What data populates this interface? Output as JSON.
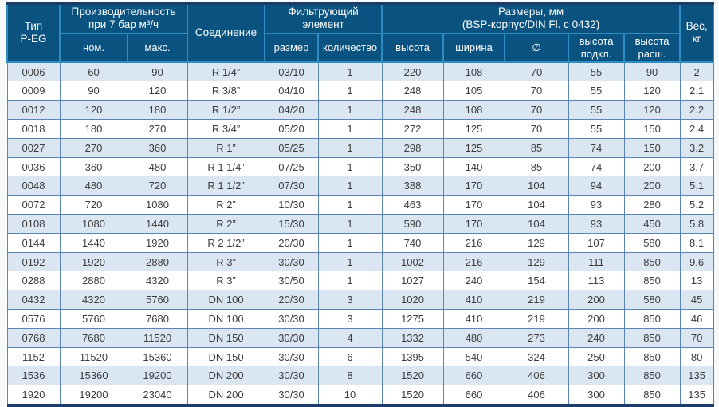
{
  "table": {
    "header": {
      "type": "Тип\nP-EG",
      "performance_group": "Производительность\nпри 7 бар м³/ч",
      "connection": "Соединение",
      "filter_group": "Фильтрующий\nэлемент",
      "dimensions_group": "Размеры, мм\n(BSP-корпус/DIN Fl. с 0432)",
      "weight": "Вес, кг",
      "subs": {
        "nominal": "ном.",
        "max": "макс.",
        "size": "размер",
        "quantity": "количество",
        "height": "высота",
        "width": "ширина",
        "diameter": "∅",
        "height_conn": "высота\nподкл.",
        "height_exp": "высота\nрасш."
      }
    },
    "column_keys": [
      "type",
      "nominal",
      "max",
      "connection",
      "element-size",
      "element-quantity",
      "height",
      "width",
      "diameter",
      "height-conn",
      "height-exp",
      "weight"
    ],
    "colors": {
      "header_bg": "#0a5280",
      "header_divider": "#2d8dc3",
      "grid_line": "#5b84b4",
      "striped_row_bg": "#dbe6f3",
      "outer_border": "#1e3d66",
      "cell_text": "#3c3c3c",
      "header_text": "#ffffff"
    },
    "rows": [
      [
        "0006",
        "60",
        "90",
        "R 1/4”",
        "03/10",
        "1",
        "220",
        "108",
        "70",
        "55",
        "90",
        "2"
      ],
      [
        "0009",
        "90",
        "120",
        "R 3/8”",
        "04/10",
        "1",
        "248",
        "105",
        "70",
        "55",
        "120",
        "2.1"
      ],
      [
        "0012",
        "120",
        "180",
        "R 1/2”",
        "04/20",
        "1",
        "248",
        "108",
        "70",
        "55",
        "120",
        "2.2"
      ],
      [
        "0018",
        "180",
        "270",
        "R 3/4”",
        "05/20",
        "1",
        "272",
        "125",
        "70",
        "55",
        "150",
        "2.4"
      ],
      [
        "0027",
        "270",
        "360",
        "R 1”",
        "05/25",
        "1",
        "298",
        "125",
        "85",
        "74",
        "150",
        "3.2"
      ],
      [
        "0036",
        "360",
        "480",
        "R 1 1/4”",
        "07/25",
        "1",
        "350",
        "140",
        "85",
        "74",
        "200",
        "3.7"
      ],
      [
        "0048",
        "480",
        "720",
        "R 1 1/2”",
        "07/30",
        "1",
        "388",
        "170",
        "104",
        "94",
        "200",
        "5.1"
      ],
      [
        "0072",
        "720",
        "1080",
        "R 2”",
        "10/30",
        "1",
        "463",
        "170",
        "104",
        "93",
        "280",
        "5.2"
      ],
      [
        "0108",
        "1080",
        "1440",
        "R 2”",
        "15/30",
        "1",
        "590",
        "170",
        "104",
        "93",
        "450",
        "5.8"
      ],
      [
        "0144",
        "1440",
        "1920",
        "R 2 1/2”",
        "20/30",
        "1",
        "740",
        "216",
        "129",
        "107",
        "580",
        "8.1"
      ],
      [
        "0192",
        "1920",
        "2880",
        "R 3”",
        "30/30",
        "1",
        "1002",
        "216",
        "129",
        "111",
        "850",
        "9.6"
      ],
      [
        "0288",
        "2880",
        "4320",
        "R 3”",
        "30/50",
        "1",
        "1027",
        "240",
        "154",
        "113",
        "850",
        "13"
      ],
      [
        "0432",
        "4320",
        "5760",
        "DN 100",
        "20/30",
        "3",
        "1020",
        "410",
        "219",
        "200",
        "580",
        "45"
      ],
      [
        "0576",
        "5760",
        "7680",
        "DN 100",
        "30/30",
        "3",
        "1275",
        "410",
        "219",
        "200",
        "850",
        "46"
      ],
      [
        "0768",
        "7680",
        "11520",
        "DN 150",
        "30/30",
        "4",
        "1332",
        "480",
        "273",
        "240",
        "850",
        "70"
      ],
      [
        "1152",
        "11520",
        "15360",
        "DN 150",
        "30/30",
        "6",
        "1395",
        "540",
        "324",
        "250",
        "850",
        "80"
      ],
      [
        "1536",
        "15360",
        "19200",
        "DN 200",
        "30/30",
        "8",
        "1520",
        "660",
        "406",
        "300",
        "850",
        "135"
      ],
      [
        "1920",
        "19200",
        "23040",
        "DN 200",
        "30/30",
        "10",
        "1520",
        "660",
        "406",
        "300",
        "850",
        "135"
      ]
    ]
  }
}
